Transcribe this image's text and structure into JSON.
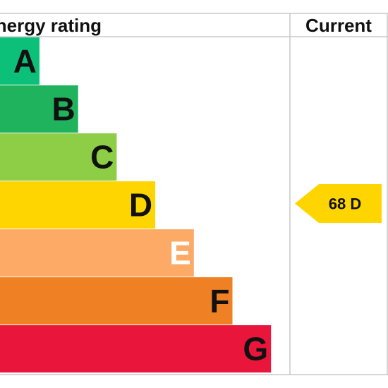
{
  "chart_data": {
    "type": "bar",
    "title": "Energy rating",
    "current_label": "Current",
    "categories": [
      "A",
      "B",
      "C",
      "D",
      "E",
      "F",
      "G"
    ],
    "band_colors": [
      "#0cc07a",
      "#1eb35c",
      "#8dce46",
      "#ffd500",
      "#fcaa65",
      "#ef8023",
      "#e9153b"
    ],
    "letter_colors": [
      "#111111",
      "#111111",
      "#111111",
      "#111111",
      "#ffffff",
      "#111111",
      "#111111"
    ],
    "current": {
      "value": 68,
      "band": "D",
      "label": "68  D",
      "color": "#ffd500"
    },
    "grid_color": "#c8c8c8"
  }
}
